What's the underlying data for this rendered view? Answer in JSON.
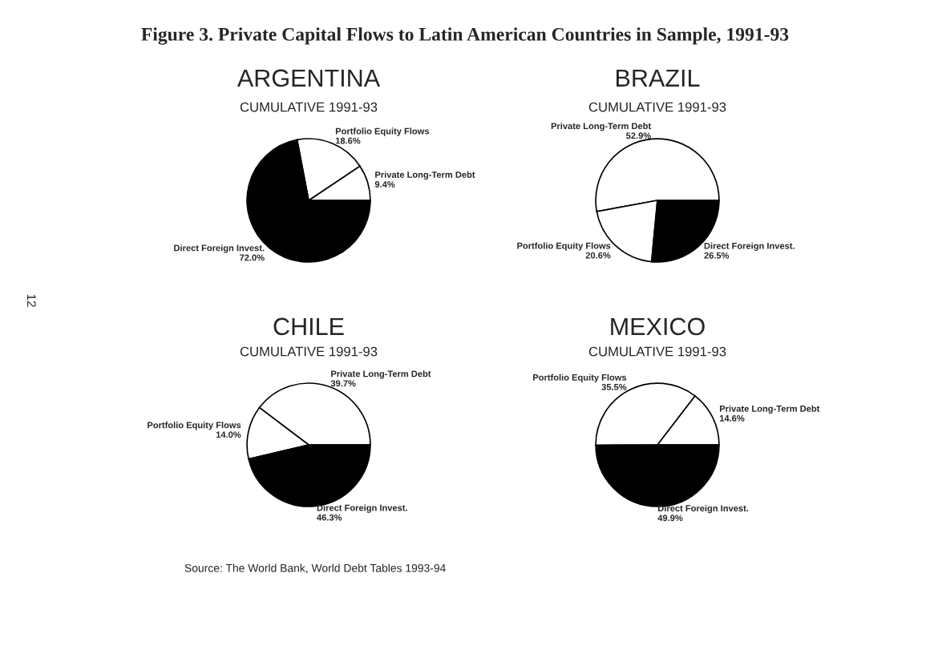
{
  "chart_data": [
    {
      "type": "pie",
      "title": "ARGENTINA",
      "subtitle": "CUMULATIVE 1991-93",
      "categories": [
        "Private Long-Term Debt",
        "Portfolio Equity Flows",
        "Direct Foreign Invest."
      ],
      "values": [
        9.4,
        18.6,
        72.0
      ],
      "value_labels": [
        "9.4%",
        "18.6%",
        "72.0%"
      ],
      "colors": [
        "#ffffff",
        "#ffffff",
        "#000000"
      ]
    },
    {
      "type": "pie",
      "title": "BRAZIL",
      "subtitle": "CUMULATIVE 1991-93",
      "categories": [
        "Private Long-Term Debt",
        "Portfolio Equity Flows",
        "Direct Foreign Invest."
      ],
      "values": [
        52.9,
        20.6,
        26.5
      ],
      "value_labels": [
        "52.9%",
        "20.6%",
        "26.5%"
      ],
      "colors": [
        "#ffffff",
        "#ffffff",
        "#000000"
      ]
    },
    {
      "type": "pie",
      "title": "CHILE",
      "subtitle": "CUMULATIVE 1991-93",
      "categories": [
        "Private Long-Term Debt",
        "Portfolio Equity Flows",
        "Direct Foreign Invest."
      ],
      "values": [
        39.7,
        14.0,
        46.3
      ],
      "value_labels": [
        "39.7%",
        "14.0%",
        "46.3%"
      ],
      "colors": [
        "#ffffff",
        "#ffffff",
        "#000000"
      ]
    },
    {
      "type": "pie",
      "title": "MEXICO",
      "subtitle": "CUMULATIVE 1991-93",
      "categories": [
        "Private Long-Term Debt",
        "Portfolio Equity Flows",
        "Direct Foreign Invest."
      ],
      "values": [
        14.6,
        35.5,
        49.9
      ],
      "value_labels": [
        "14.6%",
        "35.5%",
        "49.9%"
      ],
      "colors": [
        "#ffffff",
        "#ffffff",
        "#000000"
      ]
    },
    {
      "type": "other",
      "title": "Figure 3. Private Capital Flows to Latin American Countries in Sample, 1991-93",
      "annotations": [
        "Source: The World Bank, World Debt Tables 1993-94",
        "12"
      ]
    }
  ]
}
